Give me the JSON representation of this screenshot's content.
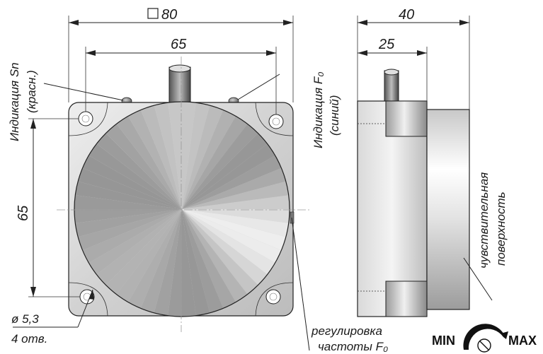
{
  "dimensions": {
    "top_overall": "80",
    "top_holes": "65",
    "side_overall": "40",
    "side_body": "25",
    "left_holes": "65",
    "hole_diameter": "ø 5,3",
    "hole_count": "4 отв."
  },
  "labels": {
    "indication_sn": "Индикация Sn",
    "indication_sn_color": "(красн.)",
    "indication_f0": "Индикация F₀",
    "indication_f0_color": "(синий)",
    "sensing_surface_1": "чувствительная",
    "sensing_surface_2": "поверхность",
    "freq_adjust_1": "регулировка",
    "freq_adjust_2": "частоты F₀"
  },
  "adjuster": {
    "min_label": "MIN",
    "max_label": "MAX"
  },
  "colors": {
    "body_light": "#e6e6e6",
    "body_dark": "#a8a8a8",
    "outline": "#222222"
  }
}
